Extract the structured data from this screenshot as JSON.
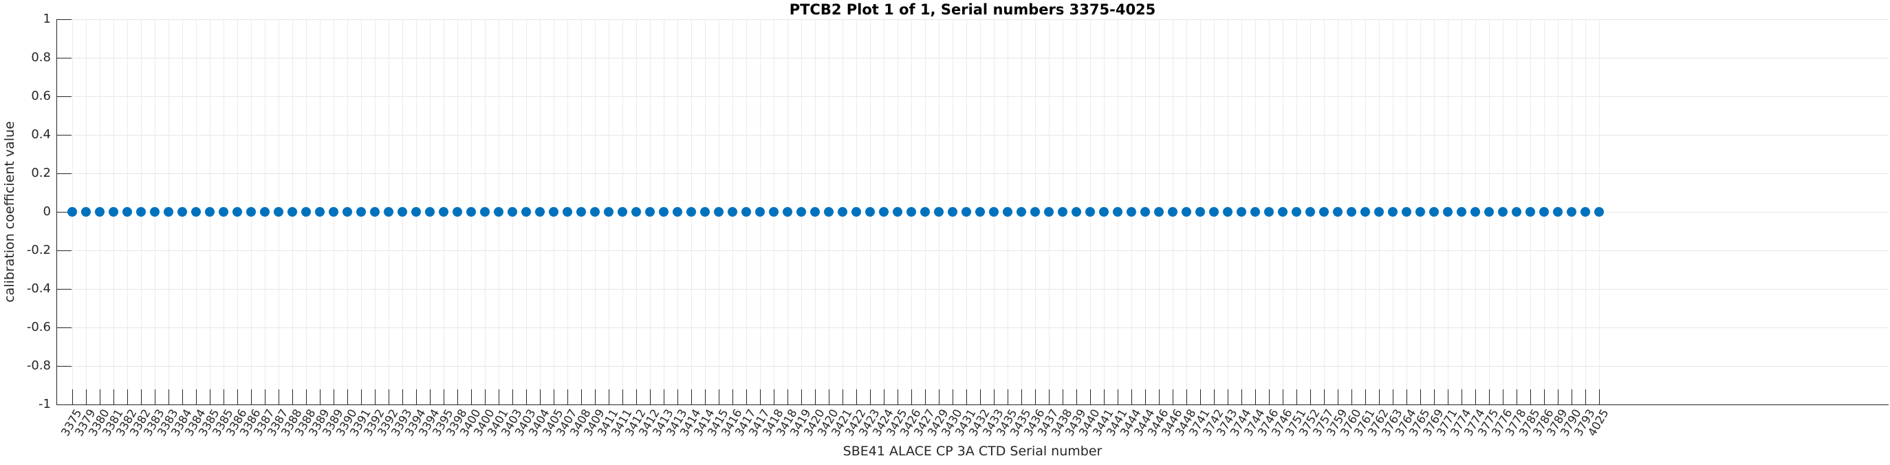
{
  "title": "PTCB2 Plot 1 of 1, Serial numbers 3375-4025",
  "colors": {
    "marker": "#0072BD",
    "axis": "#262626",
    "grid_horizontal": "#e6e6e6",
    "grid_vertical": "#ebebeb",
    "title": "#000000",
    "background": "#ffffff"
  },
  "chart_data": {
    "type": "scatter",
    "title": "PTCB2 Plot 1 of 1, Serial numbers 3375-4025",
    "xlabel": "SBE41 ALACE CP 3A CTD Serial number",
    "ylabel": "calibration coefficient value",
    "ylim": [
      -1,
      1
    ],
    "yticks": [
      1,
      0.8,
      0.6,
      0.4,
      0.2,
      0,
      -0.2,
      -0.4,
      -0.6,
      -0.8,
      -1
    ],
    "ytick_labels": [
      "1",
      "0.8",
      "0.6",
      "0.4",
      "0.2",
      "0",
      "-0.2",
      "-0.4",
      "-0.6",
      "-0.8",
      "-1"
    ],
    "grid": true,
    "legend": "none",
    "x_tick_rotation_deg": 60,
    "marker_style": "filled-circle",
    "categories": [
      "3375",
      "3379",
      "3380",
      "3381",
      "3382",
      "3382",
      "3383",
      "3383",
      "3384",
      "3384",
      "3385",
      "3385",
      "3386",
      "3386",
      "3387",
      "3387",
      "3388",
      "3388",
      "3389",
      "3389",
      "3390",
      "3391",
      "3392",
      "3392",
      "3393",
      "3394",
      "3394",
      "3395",
      "3398",
      "3400",
      "3400",
      "3401",
      "3403",
      "3403",
      "3404",
      "3405",
      "3407",
      "3408",
      "3409",
      "3411",
      "3411",
      "3412",
      "3412",
      "3413",
      "3413",
      "3414",
      "3414",
      "3415",
      "3416",
      "3417",
      "3417",
      "3418",
      "3418",
      "3419",
      "3420",
      "3420",
      "3421",
      "3422",
      "3423",
      "3424",
      "3425",
      "3426",
      "3427",
      "3429",
      "3430",
      "3431",
      "3432",
      "3433",
      "3435",
      "3435",
      "3436",
      "3437",
      "3438",
      "3439",
      "3440",
      "3441",
      "3441",
      "3444",
      "3444",
      "3446",
      "3446",
      "3448",
      "3741",
      "3742",
      "3743",
      "3744",
      "3744",
      "3746",
      "3746",
      "3751",
      "3752",
      "3757",
      "3759",
      "3760",
      "3761",
      "3762",
      "3763",
      "3764",
      "3765",
      "3769",
      "3771",
      "3774",
      "3774",
      "3775",
      "3776",
      "3778",
      "3785",
      "3786",
      "3789",
      "3790",
      "3793",
      "4025"
    ],
    "series": [
      {
        "name": "PTCB2 calibration coefficient",
        "y_all_points": 0
      }
    ]
  }
}
